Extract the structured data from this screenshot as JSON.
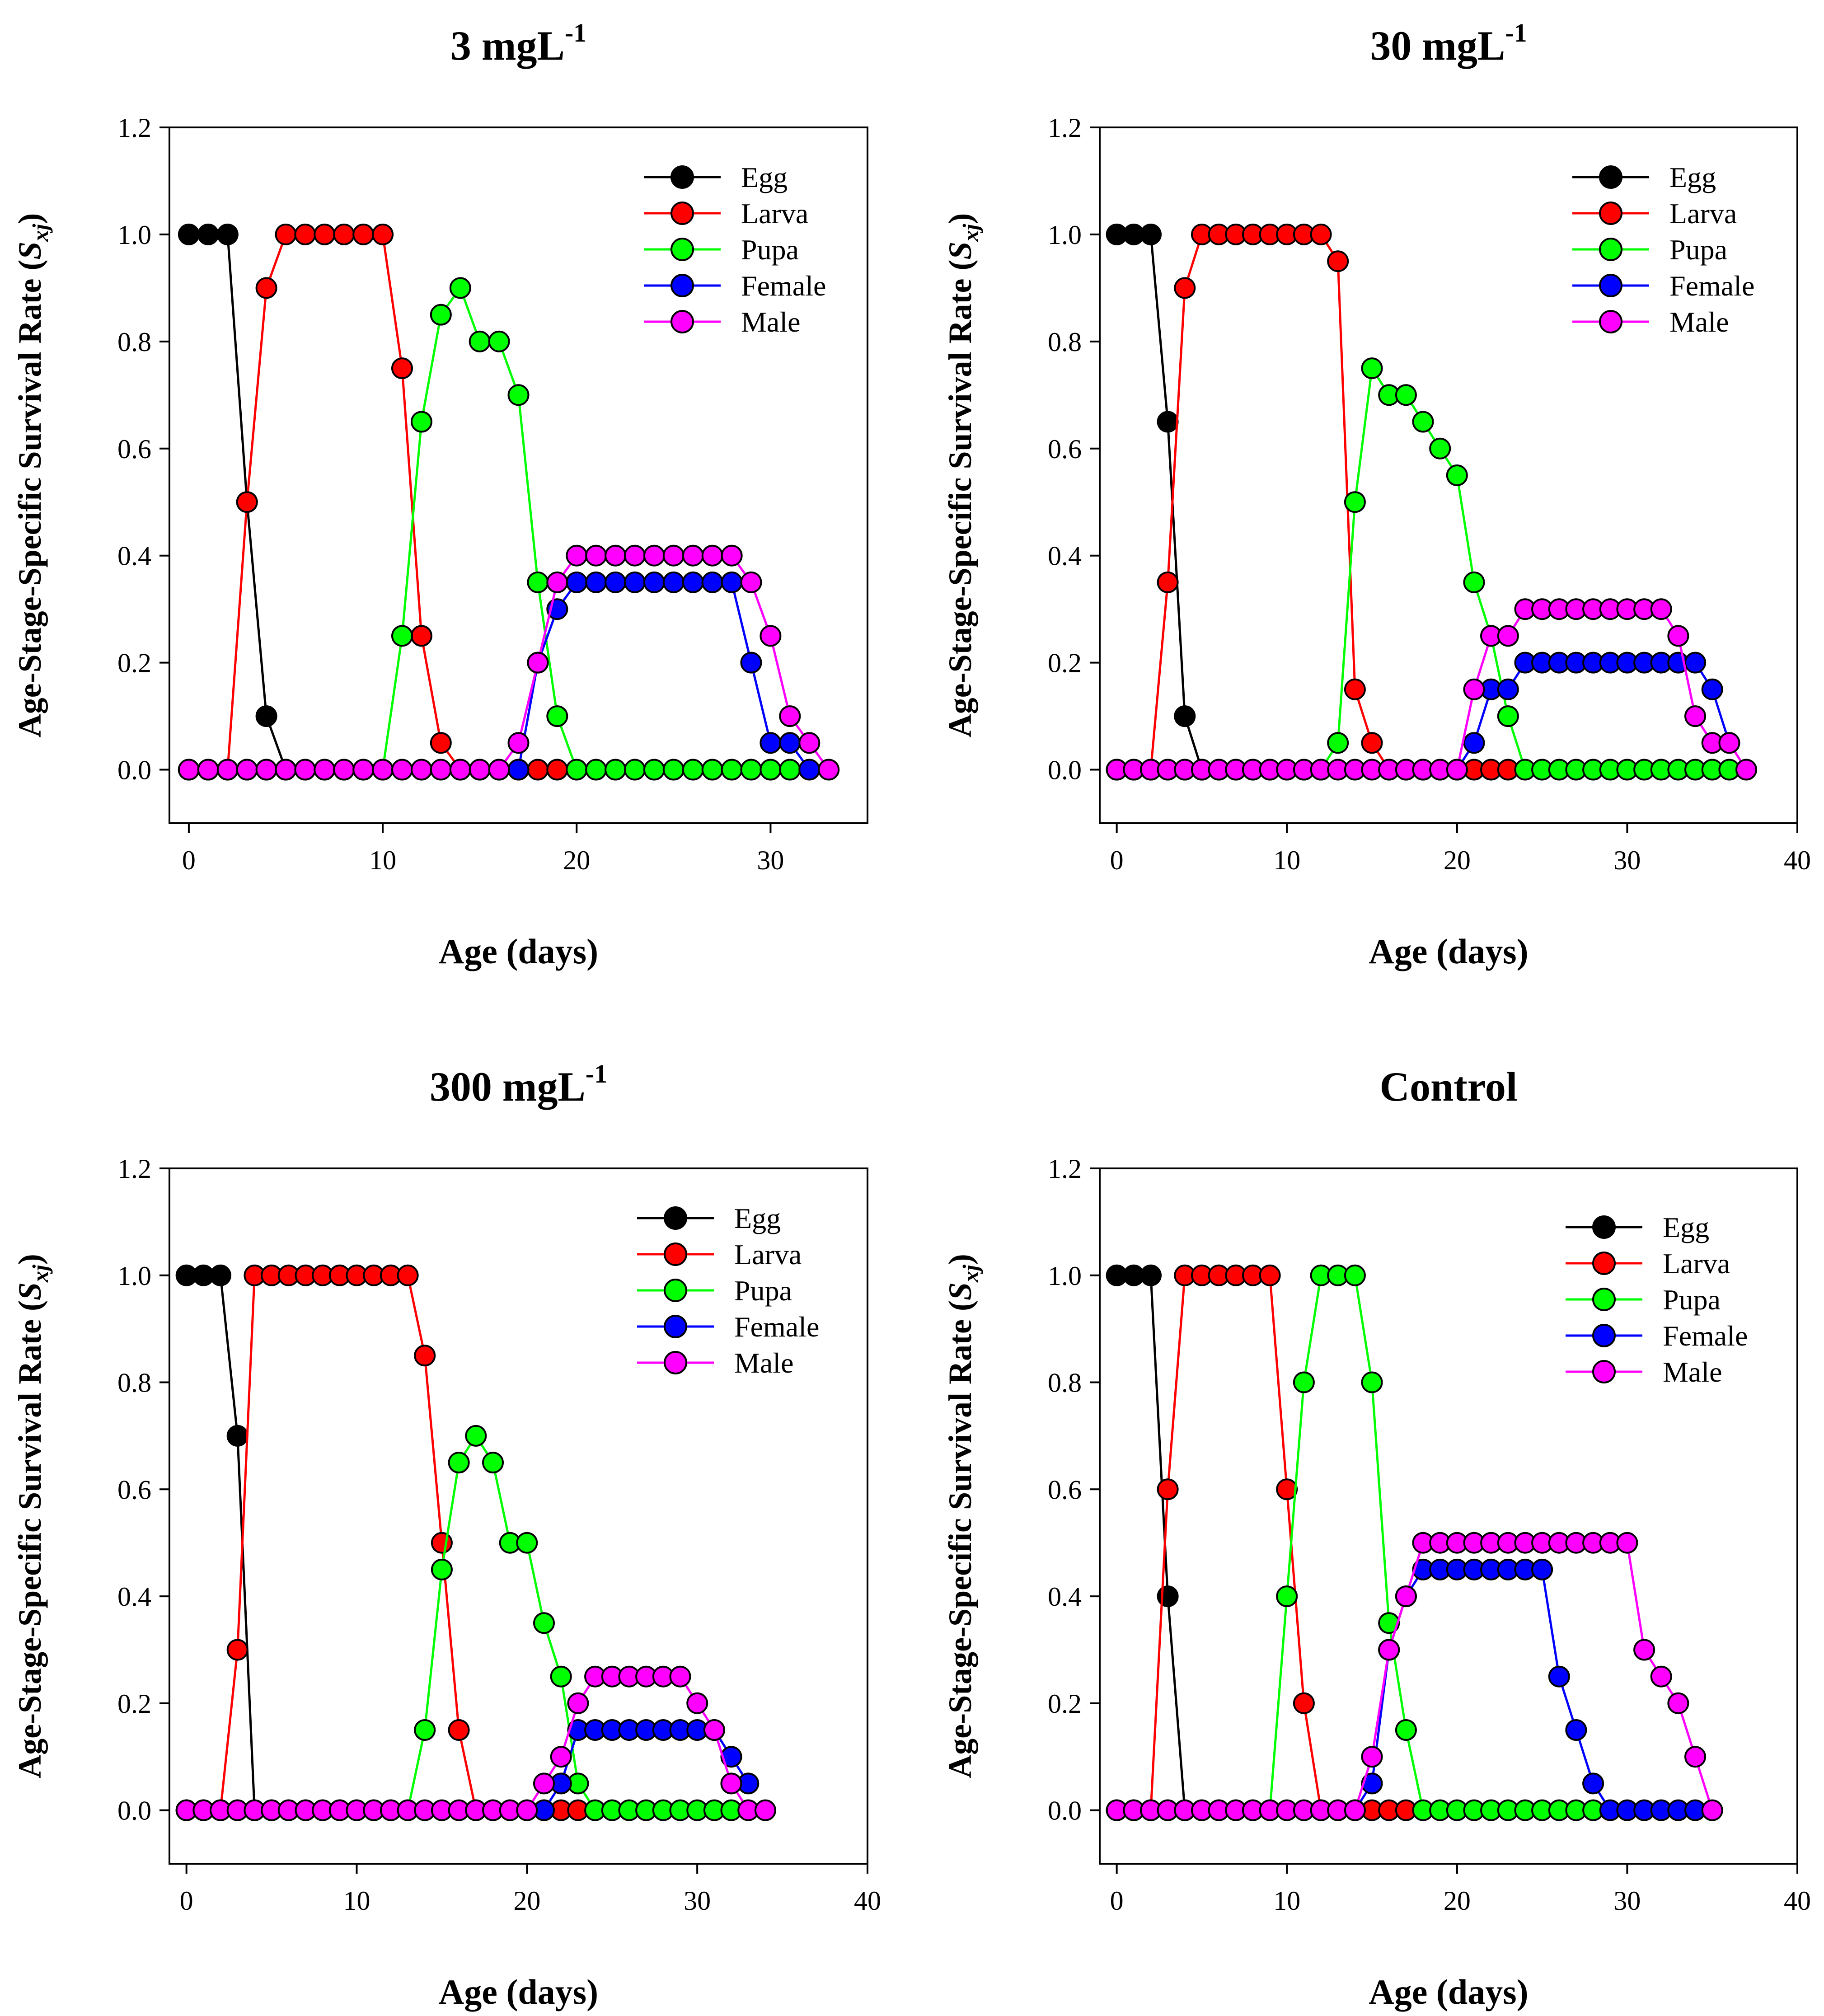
{
  "figure": {
    "stage_colors": {
      "Egg": "#000000",
      "Larva": "#ff0000",
      "Pupa": "#00ff00",
      "Female": "#0000ff",
      "Male": "#ff00ff"
    }
  },
  "chart_data": [
    {
      "type": "line",
      "title": "3 mgL",
      "title_superscript": "-1",
      "xlabel": "Age (days)",
      "ylabel": "Age-Stage-Specific Survival Rate (",
      "ylabel_symbol": "S",
      "ylabel_subscript": "xj",
      "ylabel_close": ")",
      "xlim": [
        -1,
        35
      ],
      "ylim": [
        -0.1,
        1.2
      ],
      "xticks": [
        0,
        10,
        20,
        30
      ],
      "yticks": [
        "0.0",
        "0.2",
        "0.4",
        "0.6",
        "0.8",
        "1.0",
        "1.2"
      ],
      "legend_position": "top-right",
      "series": [
        {
          "name": "Egg",
          "x": [
            0,
            1,
            2,
            3,
            4,
            5
          ],
          "y": [
            1,
            1,
            1,
            0.5,
            0.1,
            0
          ]
        },
        {
          "name": "Larva",
          "x": [
            0,
            1,
            2,
            3,
            4,
            5,
            6,
            7,
            8,
            9,
            10,
            11,
            12,
            13,
            14,
            15,
            16,
            17,
            18,
            19
          ],
          "y": [
            0,
            0,
            0,
            0.5,
            0.9,
            1,
            1,
            1,
            1,
            1,
            1,
            0.75,
            0.25,
            0.05,
            0,
            0,
            0,
            0,
            0,
            0
          ]
        },
        {
          "name": "Pupa",
          "x": [
            0,
            1,
            2,
            3,
            4,
            5,
            6,
            7,
            8,
            9,
            10,
            11,
            12,
            13,
            14,
            15,
            16,
            17,
            18,
            19,
            20,
            21,
            22,
            23,
            24,
            25,
            26,
            27,
            28,
            29,
            30,
            31
          ],
          "y": [
            0,
            0,
            0,
            0,
            0,
            0,
            0,
            0,
            0,
            0,
            0,
            0.25,
            0.65,
            0.85,
            0.9,
            0.8,
            0.8,
            0.7,
            0.35,
            0.1,
            0,
            0,
            0,
            0,
            0,
            0,
            0,
            0,
            0,
            0,
            0,
            0
          ]
        },
        {
          "name": "Female",
          "x": [
            17,
            18,
            19,
            20,
            21,
            22,
            23,
            24,
            25,
            26,
            27,
            28,
            29,
            30,
            31,
            32
          ],
          "y": [
            0,
            0.2,
            0.3,
            0.35,
            0.35,
            0.35,
            0.35,
            0.35,
            0.35,
            0.35,
            0.35,
            0.35,
            0.2,
            0.05,
            0.05,
            0
          ]
        },
        {
          "name": "Male",
          "x": [
            0,
            1,
            2,
            3,
            4,
            5,
            6,
            7,
            8,
            9,
            10,
            11,
            12,
            13,
            14,
            15,
            16,
            17,
            18,
            19,
            20,
            21,
            22,
            23,
            24,
            25,
            26,
            27,
            28,
            29,
            30,
            31,
            32,
            33
          ],
          "y": [
            0,
            0,
            0,
            0,
            0,
            0,
            0,
            0,
            0,
            0,
            0,
            0,
            0,
            0,
            0,
            0,
            0,
            0.05,
            0.2,
            0.35,
            0.4,
            0.4,
            0.4,
            0.4,
            0.4,
            0.4,
            0.4,
            0.4,
            0.4,
            0.35,
            0.25,
            0.1,
            0.05,
            0
          ]
        }
      ]
    },
    {
      "type": "line",
      "title": "30 mgL",
      "title_superscript": "-1",
      "xlabel": "Age (days)",
      "ylabel": "Age-Stage-Specific Survival Rate (",
      "ylabel_symbol": "S",
      "ylabel_subscript": "xj",
      "ylabel_close": ")",
      "xlim": [
        -1,
        40
      ],
      "ylim": [
        -0.1,
        1.2
      ],
      "xticks": [
        0,
        10,
        20,
        30,
        40
      ],
      "yticks": [
        "0.0",
        "0.2",
        "0.4",
        "0.6",
        "0.8",
        "1.0",
        "1.2"
      ],
      "legend_position": "top-right",
      "series": [
        {
          "name": "Egg",
          "x": [
            0,
            1,
            2,
            3,
            4,
            5
          ],
          "y": [
            1,
            1,
            1,
            0.65,
            0.1,
            0
          ]
        },
        {
          "name": "Larva",
          "x": [
            0,
            1,
            2,
            3,
            4,
            5,
            6,
            7,
            8,
            9,
            10,
            11,
            12,
            13,
            14,
            15,
            16,
            17,
            18,
            19,
            20,
            21,
            22,
            23
          ],
          "y": [
            0,
            0,
            0,
            0.35,
            0.9,
            1,
            1,
            1,
            1,
            1,
            1,
            1,
            1,
            0.95,
            0.15,
            0.05,
            0,
            0,
            0,
            0,
            0,
            0,
            0,
            0
          ]
        },
        {
          "name": "Pupa",
          "x": [
            0,
            1,
            2,
            3,
            4,
            5,
            6,
            7,
            8,
            9,
            10,
            11,
            12,
            13,
            14,
            15,
            16,
            17,
            18,
            19,
            20,
            21,
            22,
            23,
            24,
            25,
            26,
            27,
            28,
            29,
            30,
            31,
            32,
            33,
            34,
            35,
            36
          ],
          "y": [
            0,
            0,
            0,
            0,
            0,
            0,
            0,
            0,
            0,
            0,
            0,
            0,
            0,
            0.05,
            0.5,
            0.75,
            0.7,
            0.7,
            0.65,
            0.6,
            0.55,
            0.35,
            0.25,
            0.1,
            0,
            0,
            0,
            0,
            0,
            0,
            0,
            0,
            0,
            0,
            0,
            0,
            0
          ]
        },
        {
          "name": "Female",
          "x": [
            20,
            21,
            22,
            23,
            24,
            25,
            26,
            27,
            28,
            29,
            30,
            31,
            32,
            33,
            34,
            35,
            36
          ],
          "y": [
            0,
            0.05,
            0.15,
            0.15,
            0.2,
            0.2,
            0.2,
            0.2,
            0.2,
            0.2,
            0.2,
            0.2,
            0.2,
            0.2,
            0.2,
            0.15,
            0.05
          ]
        },
        {
          "name": "Male",
          "x": [
            0,
            1,
            2,
            3,
            4,
            5,
            6,
            7,
            8,
            9,
            10,
            11,
            12,
            13,
            14,
            15,
            16,
            17,
            18,
            19,
            20,
            21,
            22,
            23,
            24,
            25,
            26,
            27,
            28,
            29,
            30,
            31,
            32,
            33,
            34,
            35,
            36,
            37
          ],
          "y": [
            0,
            0,
            0,
            0,
            0,
            0,
            0,
            0,
            0,
            0,
            0,
            0,
            0,
            0,
            0,
            0,
            0,
            0,
            0,
            0,
            0,
            0.15,
            0.25,
            0.25,
            0.3,
            0.3,
            0.3,
            0.3,
            0.3,
            0.3,
            0.3,
            0.3,
            0.3,
            0.25,
            0.1,
            0.05,
            0.05,
            0
          ]
        }
      ]
    },
    {
      "type": "line",
      "title": "300 mgL",
      "title_superscript": "-1",
      "xlabel": "Age (days)",
      "ylabel": "Age-Stage-Specific Survival Rate (",
      "ylabel_symbol": "S",
      "ylabel_subscript": "xj",
      "ylabel_close": ")",
      "xlim": [
        -1,
        40
      ],
      "ylim": [
        -0.1,
        1.2
      ],
      "xticks": [
        0,
        10,
        20,
        30,
        40
      ],
      "yticks": [
        "0.0",
        "0.2",
        "0.4",
        "0.6",
        "0.8",
        "1.0",
        "1.2"
      ],
      "legend_position": "top-right",
      "series": [
        {
          "name": "Egg",
          "x": [
            0,
            1,
            2,
            3,
            4
          ],
          "y": [
            1,
            1,
            1,
            0.7,
            0
          ]
        },
        {
          "name": "Larva",
          "x": [
            0,
            1,
            2,
            3,
            4,
            5,
            6,
            7,
            8,
            9,
            10,
            11,
            12,
            13,
            14,
            15,
            16,
            17,
            18,
            19,
            20,
            21,
            22,
            23
          ],
          "y": [
            0,
            0,
            0,
            0.3,
            1,
            1,
            1,
            1,
            1,
            1,
            1,
            1,
            1,
            1,
            0.85,
            0.5,
            0.15,
            0,
            0,
            0,
            0,
            0,
            0,
            0
          ]
        },
        {
          "name": "Pupa",
          "x": [
            0,
            1,
            2,
            3,
            4,
            5,
            6,
            7,
            8,
            9,
            10,
            11,
            12,
            13,
            14,
            15,
            16,
            17,
            18,
            19,
            20,
            21,
            22,
            23,
            24,
            25,
            26,
            27,
            28,
            29,
            30,
            31,
            32
          ],
          "y": [
            0,
            0,
            0,
            0,
            0,
            0,
            0,
            0,
            0,
            0,
            0,
            0,
            0,
            0,
            0.15,
            0.45,
            0.65,
            0.7,
            0.65,
            0.5,
            0.5,
            0.35,
            0.25,
            0.05,
            0,
            0,
            0,
            0,
            0,
            0,
            0,
            0,
            0
          ]
        },
        {
          "name": "Female",
          "x": [
            21,
            22,
            23,
            24,
            25,
            26,
            27,
            28,
            29,
            30,
            31,
            32,
            33
          ],
          "y": [
            0,
            0.05,
            0.15,
            0.15,
            0.15,
            0.15,
            0.15,
            0.15,
            0.15,
            0.15,
            0.15,
            0.1,
            0.05
          ]
        },
        {
          "name": "Male",
          "x": [
            0,
            1,
            2,
            3,
            4,
            5,
            6,
            7,
            8,
            9,
            10,
            11,
            12,
            13,
            14,
            15,
            16,
            17,
            18,
            19,
            20,
            21,
            22,
            23,
            24,
            25,
            26,
            27,
            28,
            29,
            30,
            31,
            32,
            33,
            34
          ],
          "y": [
            0,
            0,
            0,
            0,
            0,
            0,
            0,
            0,
            0,
            0,
            0,
            0,
            0,
            0,
            0,
            0,
            0,
            0,
            0,
            0,
            0,
            0.05,
            0.1,
            0.2,
            0.25,
            0.25,
            0.25,
            0.25,
            0.25,
            0.25,
            0.2,
            0.15,
            0.05,
            0,
            0
          ]
        }
      ]
    },
    {
      "type": "line",
      "title": "Control",
      "title_superscript": "",
      "xlabel": "Age (days)",
      "ylabel": "Age-Stage-Specific Survival Rate (",
      "ylabel_symbol": "S",
      "ylabel_subscript": "xj",
      "ylabel_close": ")",
      "xlim": [
        -1,
        40
      ],
      "ylim": [
        -0.1,
        1.2
      ],
      "xticks": [
        0,
        10,
        20,
        30,
        40
      ],
      "yticks": [
        "0.0",
        "0.2",
        "0.4",
        "0.6",
        "0.8",
        "1.0",
        "1.2"
      ],
      "legend_position": "top-right",
      "series": [
        {
          "name": "Egg",
          "x": [
            0,
            1,
            2,
            3,
            4
          ],
          "y": [
            1,
            1,
            1,
            0.4,
            0
          ]
        },
        {
          "name": "Larva",
          "x": [
            0,
            1,
            2,
            3,
            4,
            5,
            6,
            7,
            8,
            9,
            10,
            11,
            12,
            13,
            14,
            15,
            16,
            17
          ],
          "y": [
            0,
            0,
            0,
            0.6,
            1,
            1,
            1,
            1,
            1,
            1,
            0.6,
            0.2,
            0,
            0,
            0,
            0,
            0,
            0
          ]
        },
        {
          "name": "Pupa",
          "x": [
            0,
            1,
            2,
            3,
            4,
            5,
            6,
            7,
            8,
            9,
            10,
            11,
            12,
            13,
            14,
            15,
            16,
            17,
            18,
            19,
            20,
            21,
            22,
            23,
            24,
            25,
            26,
            27,
            28
          ],
          "y": [
            0,
            0,
            0,
            0,
            0,
            0,
            0,
            0,
            0,
            0,
            0.4,
            0.8,
            1,
            1,
            1,
            0.8,
            0.35,
            0.15,
            0,
            0,
            0,
            0,
            0,
            0,
            0,
            0,
            0,
            0,
            0
          ]
        },
        {
          "name": "Female",
          "x": [
            14,
            15,
            16,
            17,
            18,
            19,
            20,
            21,
            22,
            23,
            24,
            25,
            26,
            27,
            28,
            29,
            30,
            31,
            32,
            33,
            34
          ],
          "y": [
            0,
            0.05,
            0.3,
            0.4,
            0.45,
            0.45,
            0.45,
            0.45,
            0.45,
            0.45,
            0.45,
            0.45,
            0.25,
            0.15,
            0.05,
            0,
            0,
            0,
            0,
            0,
            0
          ]
        },
        {
          "name": "Male",
          "x": [
            0,
            1,
            2,
            3,
            4,
            5,
            6,
            7,
            8,
            9,
            10,
            11,
            12,
            13,
            14,
            15,
            16,
            17,
            18,
            19,
            20,
            21,
            22,
            23,
            24,
            25,
            26,
            27,
            28,
            29,
            30,
            31,
            32,
            33,
            34,
            35
          ],
          "y": [
            0,
            0,
            0,
            0,
            0,
            0,
            0,
            0,
            0,
            0,
            0,
            0,
            0,
            0,
            0,
            0.1,
            0.3,
            0.4,
            0.5,
            0.5,
            0.5,
            0.5,
            0.5,
            0.5,
            0.5,
            0.5,
            0.5,
            0.5,
            0.5,
            0.5,
            0.5,
            0.3,
            0.25,
            0.2,
            0.1,
            0
          ]
        }
      ]
    }
  ]
}
